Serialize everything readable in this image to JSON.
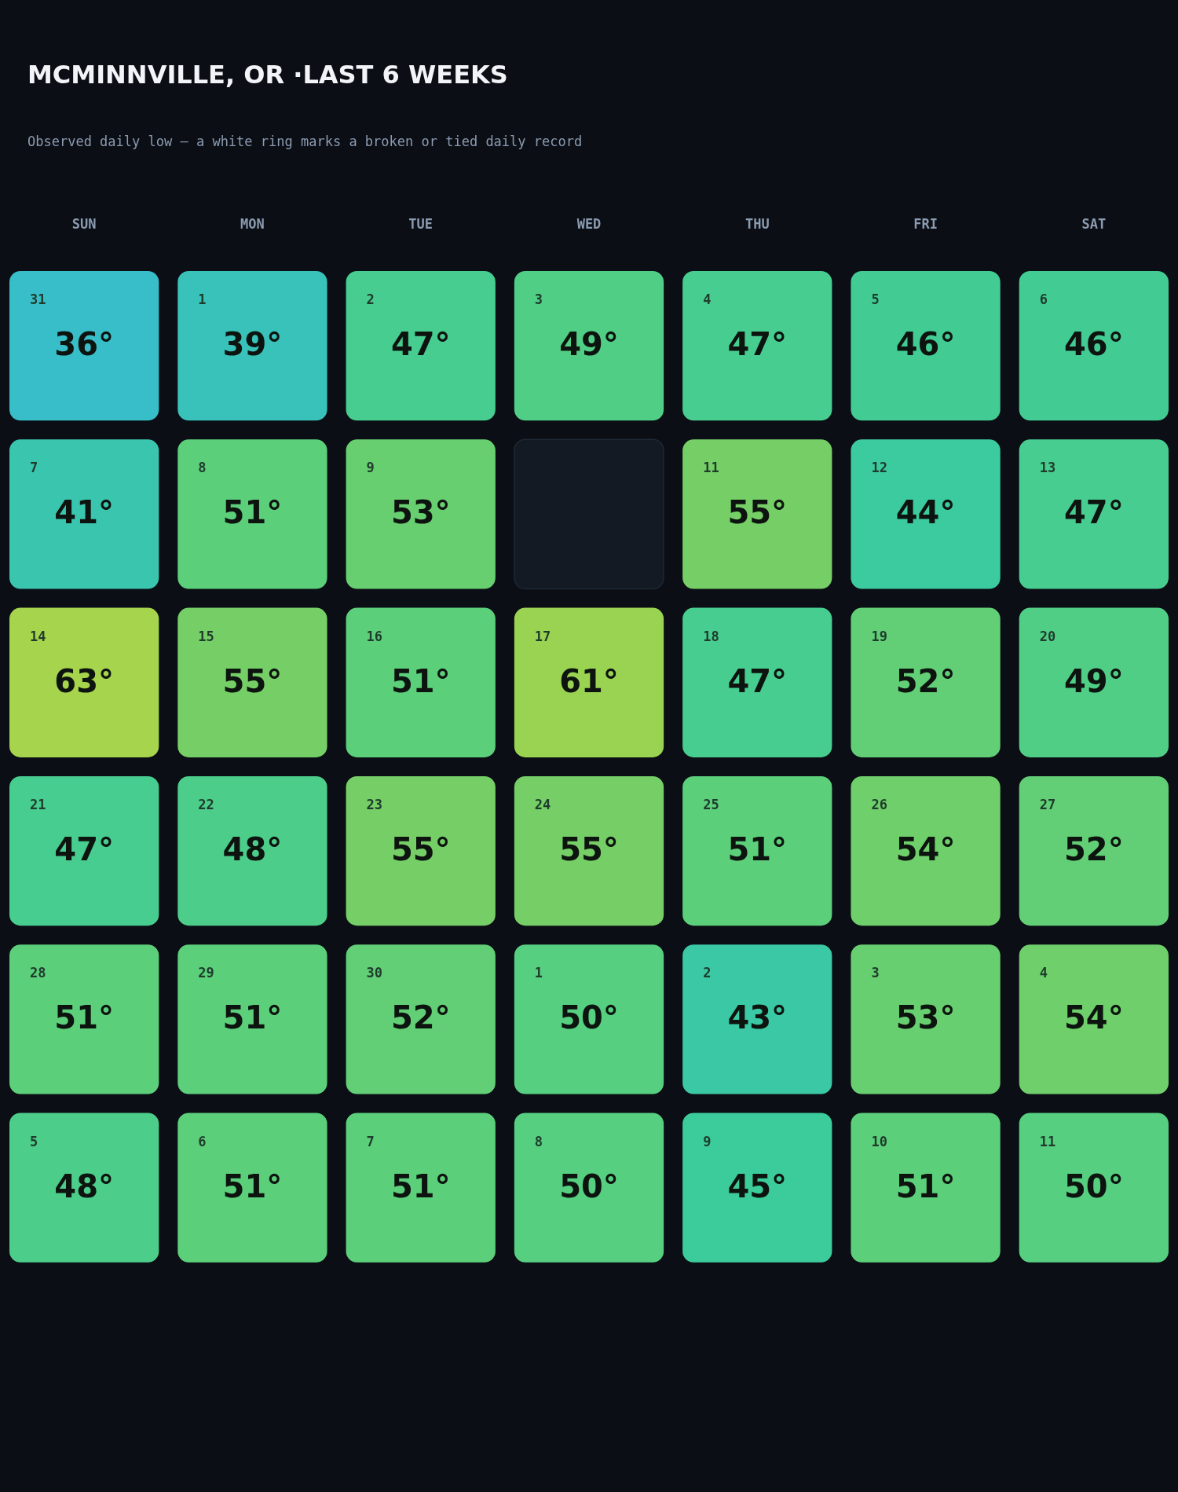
{
  "chart_data": {
    "type": "heatmap",
    "title": "MCMINNVILLE, OR ·LAST 6 WEEKS",
    "subtitle": "Observed daily low — a white ring marks a broken or tied daily record",
    "categories": [
      "SUN",
      "MON",
      "TUE",
      "WED",
      "THU",
      "FRI",
      "SAT"
    ],
    "y_categories": [
      null,
      null,
      null,
      null,
      null,
      null
    ],
    "tick_labels": "x",
    "cells": [
      [
        36,
        39,
        47,
        49,
        47,
        46,
        46
      ],
      [
        41,
        51,
        53,
        null,
        55,
        44,
        47
      ],
      [
        63,
        55,
        51,
        61,
        47,
        52,
        49
      ],
      [
        47,
        48,
        55,
        55,
        51,
        54,
        52
      ],
      [
        51,
        51,
        52,
        50,
        43,
        53,
        54
      ],
      [
        48,
        51,
        51,
        50,
        45,
        51,
        50
      ]
    ],
    "cell_labels": [
      [
        "36°",
        "39°",
        "47°",
        "49°",
        "47°",
        "46°",
        "46°"
      ],
      [
        "41°",
        "51°",
        "53°",
        null,
        "55°",
        "44°",
        "47°"
      ],
      [
        "63°",
        "55°",
        "51°",
        "61°",
        "47°",
        "52°",
        "49°"
      ],
      [
        "47°",
        "48°",
        "55°",
        "55°",
        "51°",
        "54°",
        "52°"
      ],
      [
        "51°",
        "51°",
        "52°",
        "50°",
        "43°",
        "53°",
        "54°"
      ],
      [
        "48°",
        "51°",
        "51°",
        "50°",
        "45°",
        "51°",
        "50°"
      ]
    ],
    "annotations": [
      "31",
      "1",
      "2",
      "3",
      "4",
      "5",
      "6",
      "7",
      "8",
      "9",
      "11",
      "12",
      "13",
      "14",
      "15",
      "16",
      "17",
      "18",
      "19",
      "20",
      "21",
      "22",
      "23",
      "24",
      "25",
      "26",
      "27",
      "28",
      "29",
      "30",
      "1",
      "2",
      "3",
      "4",
      "5",
      "6",
      "7",
      "8",
      "9",
      "10",
      "11"
    ]
  }
}
